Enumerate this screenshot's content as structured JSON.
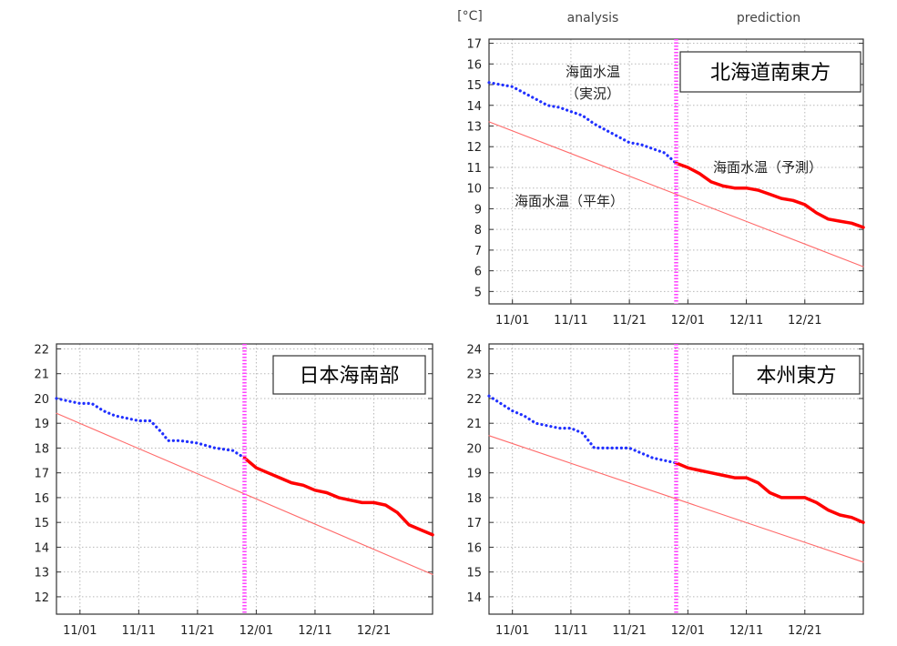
{
  "header": {
    "unit": "[°C]",
    "analysis": "analysis",
    "prediction": "prediction"
  },
  "chart_data": [
    {
      "type": "line",
      "title": "北海道南東方",
      "x_ticks": [
        "11/01",
        "11/11",
        "11/21",
        "12/01",
        "12/11",
        "12/21"
      ],
      "y_ticks": [
        5,
        6,
        7,
        8,
        9,
        10,
        11,
        12,
        13,
        14,
        15,
        16,
        17
      ],
      "ylim": [
        4.4,
        17.2
      ],
      "xlim": [
        "10/28",
        "12/31"
      ],
      "analysis_prediction_boundary": "11/29",
      "grid": true,
      "annotations": [
        "海面水温",
        "（実況）",
        "海面水温（予測）",
        "海面水温（平年）"
      ],
      "series": [
        {
          "name": "海面水温（実況）",
          "style": "dotted",
          "color": "#2030ff",
          "points": [
            [
              "10/28",
              15.1
            ],
            [
              "10/30",
              15.0
            ],
            [
              "11/01",
              14.9
            ],
            [
              "11/03",
              14.6
            ],
            [
              "11/05",
              14.3
            ],
            [
              "11/07",
              14.0
            ],
            [
              "11/09",
              13.9
            ],
            [
              "11/11",
              13.7
            ],
            [
              "11/13",
              13.5
            ],
            [
              "11/15",
              13.1
            ],
            [
              "11/17",
              12.8
            ],
            [
              "11/19",
              12.5
            ],
            [
              "11/21",
              12.2
            ],
            [
              "11/23",
              12.1
            ],
            [
              "11/25",
              11.9
            ],
            [
              "11/27",
              11.7
            ],
            [
              "11/29",
              11.2
            ]
          ]
        },
        {
          "name": "海面水温（予測）",
          "style": "solid",
          "color": "#ff0000",
          "points": [
            [
              "11/29",
              11.2
            ],
            [
              "12/01",
              11.0
            ],
            [
              "12/03",
              10.7
            ],
            [
              "12/05",
              10.3
            ],
            [
              "12/07",
              10.1
            ],
            [
              "12/09",
              10.0
            ],
            [
              "12/11",
              10.0
            ],
            [
              "12/13",
              9.9
            ],
            [
              "12/15",
              9.7
            ],
            [
              "12/17",
              9.5
            ],
            [
              "12/19",
              9.4
            ],
            [
              "12/21",
              9.2
            ],
            [
              "12/23",
              8.8
            ],
            [
              "12/25",
              8.5
            ],
            [
              "12/27",
              8.4
            ],
            [
              "12/29",
              8.3
            ],
            [
              "12/31",
              8.1
            ]
          ]
        },
        {
          "name": "海面水温（平年）",
          "style": "thin",
          "color": "#ff6a6a",
          "points": [
            [
              "10/28",
              13.2
            ],
            [
              "12/31",
              6.2
            ]
          ]
        }
      ]
    },
    {
      "type": "line",
      "title": "日本海南部",
      "x_ticks": [
        "11/01",
        "11/11",
        "11/21",
        "12/01",
        "12/11",
        "12/21"
      ],
      "y_ticks": [
        12,
        13,
        14,
        15,
        16,
        17,
        18,
        19,
        20,
        21,
        22
      ],
      "ylim": [
        11.3,
        22.2
      ],
      "xlim": [
        "10/28",
        "12/31"
      ],
      "analysis_prediction_boundary": "11/29",
      "grid": true,
      "series": [
        {
          "name": "実況",
          "style": "dotted",
          "color": "#2030ff",
          "points": [
            [
              "10/28",
              20.0
            ],
            [
              "10/30",
              19.9
            ],
            [
              "11/01",
              19.8
            ],
            [
              "11/03",
              19.8
            ],
            [
              "11/05",
              19.5
            ],
            [
              "11/07",
              19.3
            ],
            [
              "11/09",
              19.2
            ],
            [
              "11/11",
              19.1
            ],
            [
              "11/13",
              19.1
            ],
            [
              "11/15",
              18.6
            ],
            [
              "11/16",
              18.3
            ],
            [
              "11/18",
              18.3
            ],
            [
              "11/21",
              18.2
            ],
            [
              "11/24",
              18.0
            ],
            [
              "11/27",
              17.9
            ],
            [
              "11/29",
              17.6
            ]
          ]
        },
        {
          "name": "予測",
          "style": "solid",
          "color": "#ff0000",
          "points": [
            [
              "11/29",
              17.6
            ],
            [
              "12/01",
              17.2
            ],
            [
              "12/03",
              17.0
            ],
            [
              "12/05",
              16.8
            ],
            [
              "12/07",
              16.6
            ],
            [
              "12/09",
              16.5
            ],
            [
              "12/11",
              16.3
            ],
            [
              "12/13",
              16.2
            ],
            [
              "12/15",
              16.0
            ],
            [
              "12/17",
              15.9
            ],
            [
              "12/19",
              15.8
            ],
            [
              "12/21",
              15.8
            ],
            [
              "12/23",
              15.7
            ],
            [
              "12/25",
              15.4
            ],
            [
              "12/27",
              14.9
            ],
            [
              "12/29",
              14.7
            ],
            [
              "12/31",
              14.5
            ]
          ]
        },
        {
          "name": "平年",
          "style": "thin",
          "color": "#ff6a6a",
          "points": [
            [
              "10/28",
              19.4
            ],
            [
              "12/31",
              12.9
            ]
          ]
        }
      ]
    },
    {
      "type": "line",
      "title": "本州東方",
      "x_ticks": [
        "11/01",
        "11/11",
        "11/21",
        "12/01",
        "12/11",
        "12/21"
      ],
      "y_ticks": [
        14,
        15,
        16,
        17,
        18,
        19,
        20,
        21,
        22,
        23,
        24
      ],
      "ylim": [
        13.3,
        24.2
      ],
      "xlim": [
        "10/28",
        "12/31"
      ],
      "analysis_prediction_boundary": "11/29",
      "grid": true,
      "series": [
        {
          "name": "実況",
          "style": "dotted",
          "color": "#2030ff",
          "points": [
            [
              "10/28",
              22.1
            ],
            [
              "10/30",
              21.8
            ],
            [
              "11/01",
              21.5
            ],
            [
              "11/03",
              21.3
            ],
            [
              "11/05",
              21.0
            ],
            [
              "11/07",
              20.9
            ],
            [
              "11/09",
              20.8
            ],
            [
              "11/11",
              20.8
            ],
            [
              "11/13",
              20.6
            ],
            [
              "11/15",
              20.0
            ],
            [
              "11/18",
              20.0
            ],
            [
              "11/21",
              20.0
            ],
            [
              "11/23",
              19.8
            ],
            [
              "11/25",
              19.6
            ],
            [
              "11/27",
              19.5
            ],
            [
              "11/29",
              19.4
            ]
          ]
        },
        {
          "name": "予測",
          "style": "solid",
          "color": "#ff0000",
          "points": [
            [
              "11/29",
              19.4
            ],
            [
              "12/01",
              19.2
            ],
            [
              "12/03",
              19.1
            ],
            [
              "12/05",
              19.0
            ],
            [
              "12/07",
              18.9
            ],
            [
              "12/09",
              18.8
            ],
            [
              "12/11",
              18.8
            ],
            [
              "12/13",
              18.6
            ],
            [
              "12/15",
              18.2
            ],
            [
              "12/17",
              18.0
            ],
            [
              "12/19",
              18.0
            ],
            [
              "12/21",
              18.0
            ],
            [
              "12/23",
              17.8
            ],
            [
              "12/25",
              17.5
            ],
            [
              "12/27",
              17.3
            ],
            [
              "12/29",
              17.2
            ],
            [
              "12/31",
              17.0
            ]
          ]
        },
        {
          "name": "平年",
          "style": "thin",
          "color": "#ff6a6a",
          "points": [
            [
              "10/28",
              20.5
            ],
            [
              "12/31",
              15.4
            ]
          ]
        }
      ]
    }
  ]
}
